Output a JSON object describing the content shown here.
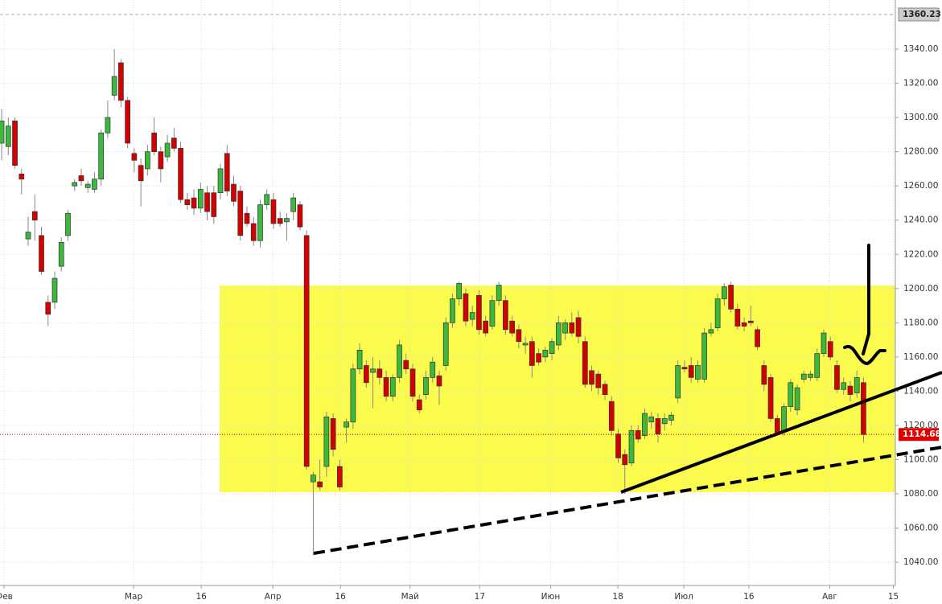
{
  "chart_data": {
    "type": "candlestick",
    "x": [
      0,
      1,
      2,
      3,
      4,
      5,
      6,
      7,
      8,
      9,
      10,
      11,
      12,
      13,
      14,
      15,
      16,
      17,
      18,
      19,
      20,
      21,
      22,
      23,
      24,
      25,
      26,
      27,
      28,
      29,
      30,
      31,
      32,
      33,
      34,
      35,
      36,
      37,
      38,
      39,
      40,
      41,
      42,
      43,
      44,
      45,
      46,
      47,
      48,
      49,
      50,
      51,
      52,
      53,
      54,
      55,
      56,
      57,
      58,
      59,
      60,
      61,
      62,
      63,
      64,
      65,
      66,
      67,
      68,
      69,
      70,
      71,
      72,
      73,
      74,
      75,
      76,
      77,
      78,
      79,
      80,
      81,
      82,
      83,
      84,
      85,
      86,
      87,
      88,
      89,
      90,
      91,
      92,
      93,
      94,
      95,
      96,
      97,
      98,
      99,
      100,
      101,
      102,
      103,
      104,
      105,
      106,
      107,
      108,
      109,
      110,
      111,
      112,
      113,
      114,
      115,
      116,
      117,
      118,
      119,
      120,
      121,
      122,
      123,
      124,
      125,
      126,
      127,
      128,
      129,
      130
    ],
    "open": [
      1285,
      1283,
      1298,
      1267,
      1229,
      1245,
      1231,
      1192,
      1192,
      1213,
      1231,
      1260,
      1266,
      1259,
      1258,
      1264,
      1291,
      1313,
      1332,
      1310,
      1279,
      1272,
      1270,
      1291,
      1280,
      1277,
      1288,
      1282,
      1252,
      1253,
      1247,
      1256,
      1256,
      1256,
      1279,
      1261,
      1257,
      1244,
      1238,
      1228,
      1249,
      1252,
      1241,
      1239,
      1245,
      1249,
      1231,
      1087,
      1087,
      1096,
      1124,
      1096,
      1119,
      1122,
      1153,
      1155,
      1151,
      1153,
      1148,
      1137,
      1148,
      1158,
      1153,
      1135,
      1138,
      1148,
      1149,
      1155,
      1180,
      1194,
      1197,
      1182,
      1196,
      1181,
      1178,
      1193,
      1193,
      1181,
      1176,
      1167,
      1169,
      1162,
      1160,
      1162,
      1167,
      1174,
      1180,
      1183,
      1169,
      1152,
      1150,
      1144,
      1134,
      1115,
      1103,
      1098,
      1117,
      1114,
      1122,
      1124,
      1121,
      1123,
      1136,
      1154,
      1155,
      1147,
      1147,
      1174,
      1177,
      1194,
      1202,
      1188,
      1180,
      1181,
      1176,
      1155,
      1148,
      1124,
      1117,
      1131,
      1129,
      1147,
      1148,
      1148,
      1162,
      1169,
      1155,
      1141,
      1143,
      1139,
      1145
    ],
    "high": [
      1305,
      1300,
      1300,
      1270,
      1242,
      1255,
      1236,
      1196,
      1210,
      1230,
      1246,
      1264,
      1270,
      1263,
      1268,
      1293,
      1310,
      1340,
      1334,
      1312,
      1282,
      1276,
      1284,
      1300,
      1283,
      1290,
      1294,
      1286,
      1256,
      1258,
      1262,
      1260,
      1260,
      1273,
      1284,
      1266,
      1260,
      1248,
      1242,
      1252,
      1258,
      1256,
      1245,
      1244,
      1256,
      1251,
      1234,
      1093,
      1100,
      1128,
      1127,
      1100,
      1124,
      1156,
      1168,
      1158,
      1160,
      1158,
      1152,
      1150,
      1170,
      1162,
      1156,
      1138,
      1152,
      1160,
      1152,
      1183,
      1197,
      1204,
      1200,
      1190,
      1199,
      1184,
      1196,
      1204,
      1196,
      1184,
      1179,
      1172,
      1172,
      1165,
      1166,
      1171,
      1184,
      1182,
      1186,
      1187,
      1172,
      1155,
      1152,
      1146,
      1137,
      1118,
      1106,
      1120,
      1120,
      1130,
      1128,
      1127,
      1127,
      1128,
      1158,
      1158,
      1160,
      1158,
      1177,
      1180,
      1197,
      1203,
      1204,
      1191,
      1183,
      1190,
      1178,
      1158,
      1150,
      1126,
      1133,
      1147,
      1144,
      1152,
      1152,
      1165,
      1176,
      1172,
      1158,
      1148,
      1146,
      1152,
      1148
    ],
    "low": [
      1275,
      1278,
      1270,
      1255,
      1225,
      1228,
      1208,
      1178,
      1188,
      1210,
      1228,
      1257,
      1260,
      1256,
      1256,
      1260,
      1288,
      1310,
      1306,
      1282,
      1268,
      1248,
      1266,
      1278,
      1262,
      1274,
      1280,
      1250,
      1246,
      1243,
      1244,
      1240,
      1238,
      1252,
      1254,
      1248,
      1228,
      1236,
      1225,
      1224,
      1246,
      1235,
      1236,
      1228,
      1240,
      1234,
      1094,
      1044,
      1082,
      1090,
      1102,
      1082,
      1110,
      1118,
      1150,
      1142,
      1130,
      1144,
      1134,
      1134,
      1145,
      1150,
      1134,
      1127,
      1135,
      1145,
      1132,
      1152,
      1177,
      1190,
      1178,
      1178,
      1173,
      1172,
      1176,
      1190,
      1173,
      1172,
      1165,
      1162,
      1148,
      1155,
      1157,
      1158,
      1164,
      1170,
      1172,
      1168,
      1142,
      1140,
      1138,
      1135,
      1114,
      1098,
      1080,
      1096,
      1110,
      1112,
      1118,
      1110,
      1117,
      1120,
      1133,
      1151,
      1145,
      1145,
      1145,
      1172,
      1175,
      1190,
      1186,
      1176,
      1175,
      1178,
      1164,
      1140,
      1122,
      1114,
      1114,
      1128,
      1126,
      1145,
      1146,
      1146,
      1160,
      1158,
      1139,
      1138,
      1134,
      1136,
      1110
    ],
    "close": [
      1298,
      1295,
      1272,
      1264,
      1233,
      1240,
      1210,
      1185,
      1206,
      1227,
      1244,
      1262,
      1263,
      1261,
      1264,
      1291,
      1300,
      1324,
      1310,
      1285,
      1275,
      1263,
      1280,
      1280,
      1270,
      1285,
      1282,
      1252,
      1249,
      1247,
      1258,
      1245,
      1242,
      1270,
      1257,
      1251,
      1231,
      1238,
      1228,
      1249,
      1255,
      1238,
      1238,
      1241,
      1253,
      1236,
      1096,
      1091,
      1084,
      1125,
      1106,
      1084,
      1122,
      1153,
      1164,
      1145,
      1153,
      1148,
      1137,
      1148,
      1167,
      1153,
      1137,
      1129,
      1148,
      1157,
      1143,
      1180,
      1194,
      1203,
      1181,
      1186,
      1176,
      1174,
      1193,
      1202,
      1176,
      1174,
      1169,
      1168,
      1155,
      1157,
      1164,
      1169,
      1180,
      1180,
      1174,
      1172,
      1144,
      1144,
      1142,
      1138,
      1117,
      1101,
      1097,
      1117,
      1112,
      1127,
      1125,
      1115,
      1124,
      1126,
      1155,
      1153,
      1148,
      1155,
      1174,
      1176,
      1194,
      1201,
      1188,
      1178,
      1178,
      1180,
      1166,
      1144,
      1124,
      1115,
      1131,
      1145,
      1142,
      1150,
      1150,
      1162,
      1174,
      1160,
      1141,
      1145,
      1138,
      1148,
      1114.68
    ],
    "up_color": "#3cb83c",
    "down_color": "#d40000",
    "xlim": [
      -0.25,
      134.8
    ],
    "ylim": [
      1026.4,
      1368.7
    ],
    "xticks": [
      {
        "value": 0.36,
        "label": "Фев"
      },
      {
        "value": 19.9,
        "label": "Мар"
      },
      {
        "value": 30.1,
        "label": "16"
      },
      {
        "value": 40.9,
        "label": "Апр"
      },
      {
        "value": 51.1,
        "label": "16"
      },
      {
        "value": 61.6,
        "label": "Май"
      },
      {
        "value": 72.1,
        "label": "17"
      },
      {
        "value": 82.8,
        "label": "Июн"
      },
      {
        "value": 92.95,
        "label": "18"
      },
      {
        "value": 102.9,
        "label": "Июл"
      },
      {
        "value": 112.7,
        "label": "16"
      },
      {
        "value": 124.9,
        "label": "Авг"
      },
      {
        "value": 134.5,
        "label": "15"
      }
    ],
    "yticks": [
      {
        "value": 1040,
        "label": "1040.00"
      },
      {
        "value": 1060,
        "label": "1060.00"
      },
      {
        "value": 1080,
        "label": "1080.00"
      },
      {
        "value": 1100,
        "label": "1100.00"
      },
      {
        "value": 1120,
        "label": "1120.00"
      },
      {
        "value": 1140,
        "label": "1140.00"
      },
      {
        "value": 1160,
        "label": "1160.00"
      },
      {
        "value": 1180,
        "label": "1180.00"
      },
      {
        "value": 1200,
        "label": "1200.00"
      },
      {
        "value": 1220,
        "label": "1220.00"
      },
      {
        "value": 1240,
        "label": "1240.00"
      },
      {
        "value": 1260,
        "label": "1260.00"
      },
      {
        "value": 1280,
        "label": "1280.00"
      },
      {
        "value": 1300,
        "label": "1300.00"
      },
      {
        "value": 1320,
        "label": "1320.00"
      },
      {
        "value": 1340,
        "label": "1340.00"
      }
    ],
    "grid": true,
    "last_price": 1114.68,
    "last_price_color": "#e00000",
    "period_high": 1360.23
  }
}
